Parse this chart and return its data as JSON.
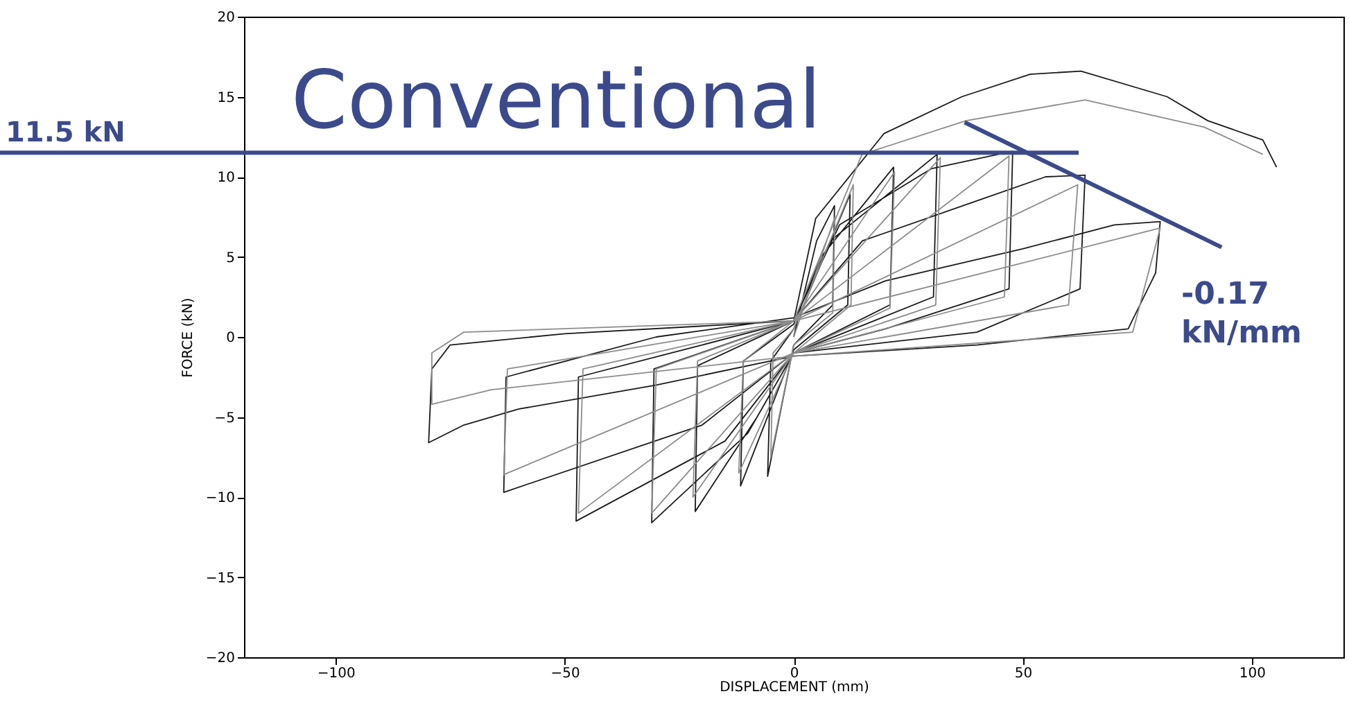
{
  "chart_data": {
    "type": "line",
    "xlabel": "DISPLACEMENT (mm)",
    "ylabel": "FORCE (kN)",
    "xlim": [
      -120,
      120
    ],
    "xticks": [
      -100,
      -50,
      0,
      50,
      100
    ],
    "ylim": [
      -20,
      20
    ],
    "yticks": [
      -20,
      -15,
      -10,
      -5,
      0,
      5,
      10,
      15,
      20
    ],
    "grid": false,
    "annotations": [
      "Conventional",
      "-0.17 kN/mm"
    ],
    "ref_lines": [
      {
        "axis": "y",
        "value": 11.5,
        "label": "11.5 kN",
        "color": "#3c4a8c"
      }
    ],
    "series": [
      {
        "color": "#1a1a1a",
        "x": [
          0,
          5,
          8.9,
          8.5,
          0,
          -5.7,
          -5,
          0,
          12.3,
          11.8,
          0,
          -11.6,
          -11,
          0,
          6,
          21.8,
          21,
          0,
          -8,
          -21.5,
          -21,
          0,
          8,
          31.3,
          30.5,
          0,
          -10,
          -31,
          -30.5,
          0,
          10,
          30,
          47.8,
          47,
          20,
          0,
          -15,
          -47.5,
          -47,
          -20,
          0,
          15,
          40,
          55,
          63.6,
          62.5,
          40,
          0,
          -20,
          -63.3,
          -62.8,
          -30,
          0,
          20,
          50,
          70,
          80,
          79,
          73,
          40,
          0,
          -30,
          -60,
          -72,
          -79.7,
          -79,
          -75,
          -50,
          0,
          4.8,
          19.7,
          36.7,
          51.6,
          62.7,
          81.5,
          90.4,
          102.4,
          105.4
        ],
        "values": [
          0,
          6,
          8.2,
          2,
          -0.5,
          -8.7,
          -1.5,
          0.5,
          8.9,
          2,
          -0.8,
          -9.3,
          -1.5,
          0.8,
          5,
          10.6,
          2,
          -1,
          -5,
          -10.9,
          -1.8,
          1,
          6,
          11.4,
          2.5,
          -1,
          -6,
          -11.6,
          -2,
          1,
          7,
          10.5,
          11.6,
          3,
          0.5,
          -1,
          -6.5,
          -11.5,
          -2.5,
          -0.5,
          1,
          6,
          8.5,
          10,
          10.1,
          3,
          0.3,
          -1,
          -5.5,
          -9.7,
          -2.5,
          0,
          1.2,
          3.5,
          5.5,
          7,
          7.2,
          4,
          0.5,
          -0.5,
          -1.2,
          -3,
          -4.5,
          -5.5,
          -6.6,
          -2,
          -0.5,
          0.2,
          1,
          7.4,
          12.7,
          15,
          16.4,
          16.6,
          15,
          13.5,
          12.3,
          10.6
        ]
      },
      {
        "color": "#8c8c8c",
        "x": [
          0,
          9,
          8.5,
          0,
          -5,
          -4.5,
          0,
          13,
          12.5,
          0,
          -12,
          -11,
          0,
          22,
          21,
          0,
          -22,
          -21,
          0,
          32,
          31,
          0,
          -31,
          -30,
          0,
          47,
          46,
          0,
          -47,
          -46,
          0,
          62,
          60,
          0,
          -63.3,
          -62.5,
          0,
          80,
          74,
          0,
          -66,
          -79,
          -79,
          -72,
          0,
          14.9,
          37.6,
          63.6,
          89.6,
          102.4
        ],
        "values": [
          0,
          7.5,
          1.5,
          -0.5,
          -7.5,
          -1,
          0.5,
          9.5,
          2,
          -1,
          -8.5,
          -1.5,
          1,
          10.3,
          1.8,
          -1,
          -10,
          -1.5,
          1,
          11.2,
          2,
          -1,
          -11,
          -2,
          1,
          11.3,
          2.5,
          -1,
          -11,
          -2,
          1,
          9.5,
          2,
          -1,
          -8.6,
          -2,
          1,
          6.8,
          0.3,
          -1.2,
          -3.3,
          -4.2,
          -1,
          0.3,
          1,
          11.4,
          13.5,
          14.8,
          13.1,
          11.4
        ]
      },
      {
        "color": "#3c4a8c",
        "x": [
          37.3,
          93.4
        ],
        "values": [
          13.4,
          5.6
        ]
      }
    ]
  }
}
